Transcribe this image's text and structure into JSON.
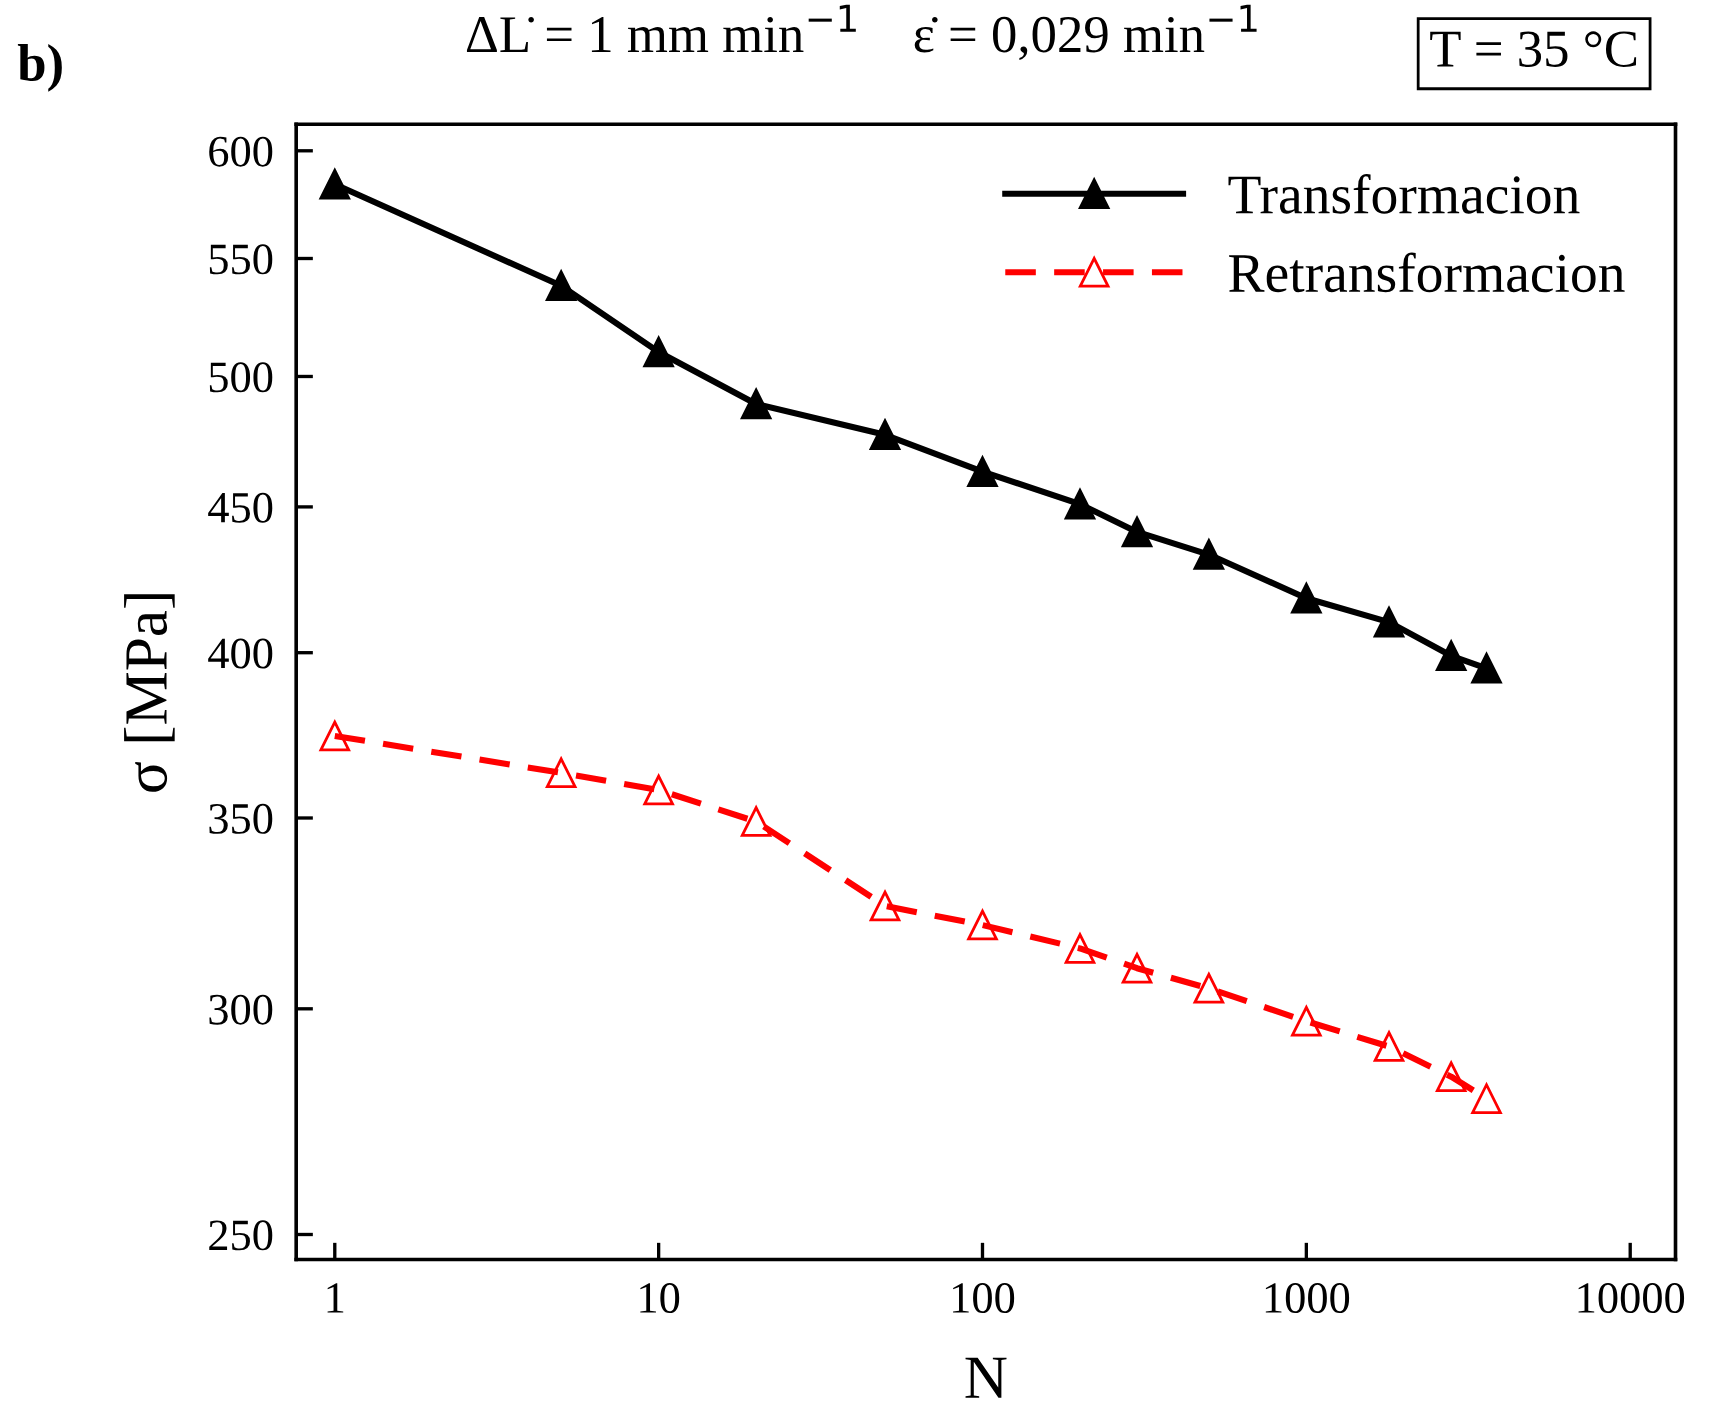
{
  "chart_data": {
    "type": "line",
    "xlabel": "N",
    "ylabel": "σ [MPa]",
    "log": "xy",
    "annotations": [
      "b)",
      "ΔL̇ = 1 mm min$^{−1}$",
      "ε̇ = 0,029 min$^{−1}$",
      "T = 35 °C"
    ],
    "x": [
      1,
      5,
      10,
      20,
      50,
      100,
      200,
      300,
      500,
      1000,
      1800,
      2800,
      3600
    ],
    "series": [
      {
        "name": "Transformacion",
        "color": "#000000",
        "marker": "triangle",
        "line_style": "solid",
        "values": [
          584,
          538,
          510,
          489,
          477,
          463,
          451,
          441,
          433,
          418,
          410,
          399,
          395
        ]
      },
      {
        "name": "Retransformacion",
        "color": "#ff0000",
        "marker": "triangle",
        "line_style": "dashed",
        "values": [
          374,
          363,
          358,
          349,
          326,
          321,
          315,
          310,
          305,
          297,
          291,
          284,
          279
        ]
      }
    ],
    "xlim": [
      0.76,
      13800
    ],
    "xticks": [
      1,
      10,
      100,
      1000,
      10000
    ],
    "ylim": [
      245,
      613
    ],
    "yticks": [
      250,
      300,
      350,
      400,
      450,
      500,
      550,
      600
    ],
    "grid": false,
    "legend": "top right"
  }
}
